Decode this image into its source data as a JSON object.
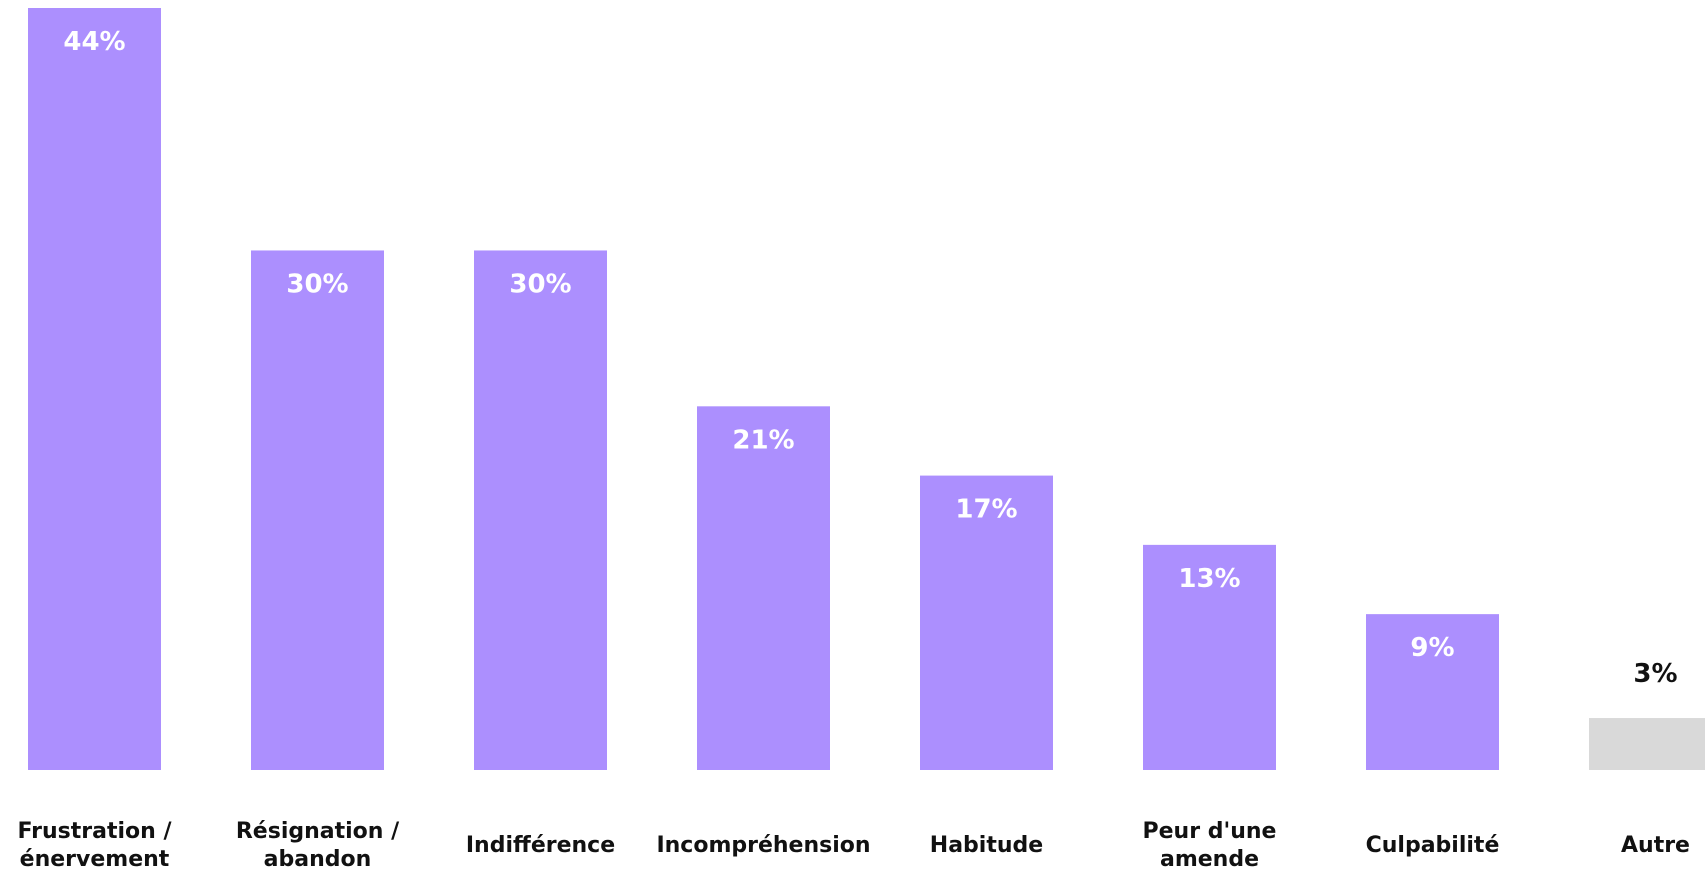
{
  "chart_data": {
    "type": "bar",
    "title": "",
    "xlabel": "",
    "ylabel": "",
    "ylim": [
      0,
      44
    ],
    "grid": false,
    "legend": "none",
    "value_suffix": "%",
    "categories": [
      "Frustration / énervement",
      "Résignation / abandon",
      "Indifférence",
      "Incompréhension",
      "Habitude",
      "Peur d'une amende",
      "Culpabilité",
      "Autre"
    ],
    "category_lines": [
      [
        "Frustration /",
        "énervement"
      ],
      [
        "Résignation /",
        "abandon"
      ],
      [
        "Indifférence"
      ],
      [
        "Incompréhension"
      ],
      [
        "Habitude"
      ],
      [
        "Peur d'une",
        "amende"
      ],
      [
        "Culpabilité"
      ],
      [
        "Autre"
      ]
    ],
    "values": [
      44,
      30,
      30,
      21,
      17,
      13,
      9,
      3
    ],
    "value_labels": [
      "44%",
      "30%",
      "30%",
      "21%",
      "17%",
      "13%",
      "9%",
      "3%"
    ],
    "colors": {
      "bar": "#ac8ffe",
      "bar_other": "#d9d9d9",
      "label_inside": "#ffffff",
      "label_outside": "#111111",
      "category_text": "#111111"
    }
  }
}
